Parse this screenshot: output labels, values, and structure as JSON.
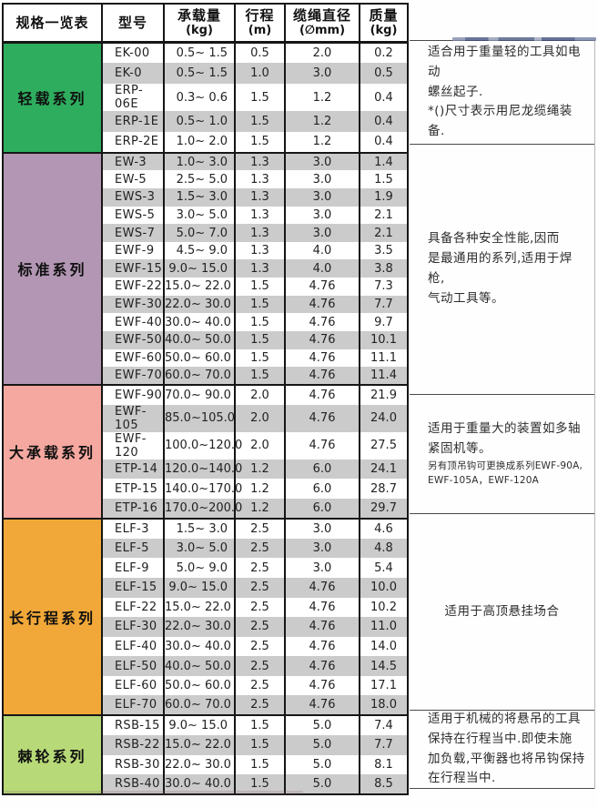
{
  "header": {
    "columns": [
      {
        "title": "规格一览表",
        "sub": ""
      },
      {
        "title": "型号",
        "sub": ""
      },
      {
        "title": "承载量",
        "sub": "(kg)"
      },
      {
        "title": "行程",
        "sub": "(m)"
      },
      {
        "title": "缆绳直径",
        "sub": "(∅mm)"
      },
      {
        "title": "质量",
        "sub": "(kg)"
      }
    ]
  },
  "colors": {
    "stripe": "#cbcbcb",
    "border": "#161616",
    "series": [
      "#2ead5e",
      "#b296b3",
      "#f5a8a0",
      "#f2a838",
      "#b7d977"
    ]
  },
  "sections": [
    {
      "name": "轻载系列",
      "color": "#2ead5e",
      "rows": [
        {
          "model": "EK-00",
          "capacity": "0.5~ 1.5",
          "stroke": "0.5",
          "diameter": "2.0",
          "mass": "0.2"
        },
        {
          "model": "EK-0",
          "capacity": "0.5~ 1.5",
          "stroke": "1.0",
          "diameter": "3.0",
          "mass": "0.5"
        },
        {
          "model": "ERP-06E",
          "capacity": "0.3~ 0.6",
          "stroke": "1.5",
          "diameter": "1.2",
          "mass": "0.4"
        },
        {
          "model": "ERP-1E",
          "capacity": "0.5~ 1.0",
          "stroke": "1.5",
          "diameter": "1.2",
          "mass": "0.4"
        },
        {
          "model": "ERP-2E",
          "capacity": "1.0~ 2.0",
          "stroke": "1.5",
          "diameter": "1.2",
          "mass": "0.4"
        }
      ],
      "note": {
        "lines": [
          "适合用于重量轻的工具如电动",
          "螺丝起子.",
          "*()尺寸表示用尼龙缆绳装备."
        ],
        "small": [],
        "align": "left"
      }
    },
    {
      "name": "标准系列",
      "color": "#b296b3",
      "rows": [
        {
          "model": "EW-3",
          "capacity": "1.0~ 3.0",
          "stroke": "1.3",
          "diameter": "3.0",
          "mass": "1.4"
        },
        {
          "model": "EW-5",
          "capacity": "2.5~ 5.0",
          "stroke": "1.3",
          "diameter": "3.0",
          "mass": "1.5"
        },
        {
          "model": "EWS-3",
          "capacity": "1.5~ 3.0",
          "stroke": "1.3",
          "diameter": "3.0",
          "mass": "1.9"
        },
        {
          "model": "EWS-5",
          "capacity": "3.0~ 5.0",
          "stroke": "1.3",
          "diameter": "3.0",
          "mass": "2.1"
        },
        {
          "model": "EWS-7",
          "capacity": "5.0~ 7.0",
          "stroke": "1.3",
          "diameter": "3.0",
          "mass": "2.1"
        },
        {
          "model": "EWF-9",
          "capacity": "4.5~ 9.0",
          "stroke": "1.3",
          "diameter": "4.0",
          "mass": "3.5"
        },
        {
          "model": "EWF-15",
          "capacity": "9.0~ 15.0",
          "stroke": "1.3",
          "diameter": "4.0",
          "mass": "3.8"
        },
        {
          "model": "EWF-22",
          "capacity": "15.0~ 22.0",
          "stroke": "1.5",
          "diameter": "4.76",
          "mass": "7.3"
        },
        {
          "model": "EWF-30",
          "capacity": "22.0~ 30.0",
          "stroke": "1.5",
          "diameter": "4.76",
          "mass": "7.7"
        },
        {
          "model": "EWF-40",
          "capacity": "30.0~ 40.0",
          "stroke": "1.5",
          "diameter": "4.76",
          "mass": "9.7"
        },
        {
          "model": "EWF-50",
          "capacity": "40.0~ 50.0",
          "stroke": "1.5",
          "diameter": "4.76",
          "mass": "10.1"
        },
        {
          "model": "EWF-60",
          "capacity": "50.0~ 60.0",
          "stroke": "1.5",
          "diameter": "4.76",
          "mass": "11.1"
        },
        {
          "model": "EWF-70",
          "capacity": "60.0~ 70.0",
          "stroke": "1.5",
          "diameter": "4.76",
          "mass": "11.4"
        }
      ],
      "note": {
        "lines": [
          "具备各种安全性能,因而",
          "是最通用的系列,适用于焊枪,",
          "气动工具等。"
        ],
        "small": [],
        "align": "left"
      }
    },
    {
      "name": "大承载系列",
      "color": "#f5a8a0",
      "rows": [
        {
          "model": "EWF-90",
          "capacity": "70.0~ 90.0",
          "stroke": "2.0",
          "diameter": "4.76",
          "mass": "21.9"
        },
        {
          "model": "EWF-105",
          "capacity": "85.0~105.0",
          "stroke": "2.0",
          "diameter": "4.76",
          "mass": "24.0"
        },
        {
          "model": "EWF-120",
          "capacity": "100.0~120.0",
          "stroke": "2.0",
          "diameter": "4.76",
          "mass": "27.5"
        },
        {
          "model": "ETP-14",
          "capacity": "120.0~140.0",
          "stroke": "1.2",
          "diameter": "6.0",
          "mass": "24.1"
        },
        {
          "model": "ETP-15",
          "capacity": "140.0~170.0",
          "stroke": "1.2",
          "diameter": "6.0",
          "mass": "28.7"
        },
        {
          "model": "ETP-16",
          "capacity": "170.0~200.0",
          "stroke": "1.2",
          "diameter": "6.0",
          "mass": "29.7"
        }
      ],
      "note": {
        "lines": [
          "适用于重量大的装置如多轴",
          "紧固机等。"
        ],
        "small": [
          "另有顶吊钩可更换成系列EWF-90A,",
          "EWF-105A，EWF-120A"
        ],
        "align": "left"
      }
    },
    {
      "name": "长行程系列",
      "color": "#f2a838",
      "rows": [
        {
          "model": "ELF-3",
          "capacity": "1.5~ 3.0",
          "stroke": "2.5",
          "diameter": "3.0",
          "mass": "4.6"
        },
        {
          "model": "ELF-5",
          "capacity": "3.0~ 5.0",
          "stroke": "2.5",
          "diameter": "3.0",
          "mass": "4.8"
        },
        {
          "model": "ELF-9",
          "capacity": "5.0~ 9.0",
          "stroke": "2.5",
          "diameter": "3.0",
          "mass": "5.4"
        },
        {
          "model": "ELF-15",
          "capacity": "9.0~ 15.0",
          "stroke": "2.5",
          "diameter": "4.76",
          "mass": "10.0"
        },
        {
          "model": "ELF-22",
          "capacity": "15.0~ 22.0",
          "stroke": "2.5",
          "diameter": "4.76",
          "mass": "10.2"
        },
        {
          "model": "ELF-30",
          "capacity": "22.0~ 30.0",
          "stroke": "2.5",
          "diameter": "4.76",
          "mass": "11.0"
        },
        {
          "model": "ELF-40",
          "capacity": "30.0~ 40.0",
          "stroke": "2.5",
          "diameter": "4.76",
          "mass": "14.0"
        },
        {
          "model": "ELF-50",
          "capacity": "40.0~ 50.0",
          "stroke": "2.5",
          "diameter": "4.76",
          "mass": "14.5"
        },
        {
          "model": "ELF-60",
          "capacity": "50.0~ 60.0",
          "stroke": "2.5",
          "diameter": "4.76",
          "mass": "17.1"
        },
        {
          "model": "ELF-70",
          "capacity": "60.0~ 70.0",
          "stroke": "2.5",
          "diameter": "4.76",
          "mass": "18.0"
        }
      ],
      "note": {
        "lines": [
          "适用于高顶悬挂场合"
        ],
        "small": [],
        "align": "center"
      }
    },
    {
      "name": "棘轮系列",
      "color": "#b7d977",
      "rows": [
        {
          "model": "RSB-15",
          "capacity": "9.0~ 15.0",
          "stroke": "1.5",
          "diameter": "5.0",
          "mass": "7.4"
        },
        {
          "model": "RSB-22",
          "capacity": "15.0~ 22.0",
          "stroke": "1.5",
          "diameter": "5.0",
          "mass": "7.7"
        },
        {
          "model": "RSB-30",
          "capacity": "22.0~ 30.0",
          "stroke": "1.5",
          "diameter": "5.0",
          "mass": "8.1"
        },
        {
          "model": "RSB-40",
          "capacity": "30.0~ 40.0",
          "stroke": "1.5",
          "diameter": "5.0",
          "mass": "8.5"
        }
      ],
      "note": {
        "lines": [
          "适用于机械的将悬吊的工具",
          "保持在行程当中.即使未施",
          "加负载,平衡器也将吊钩保持",
          "在行程当中."
        ],
        "small": [],
        "align": "left"
      }
    }
  ]
}
